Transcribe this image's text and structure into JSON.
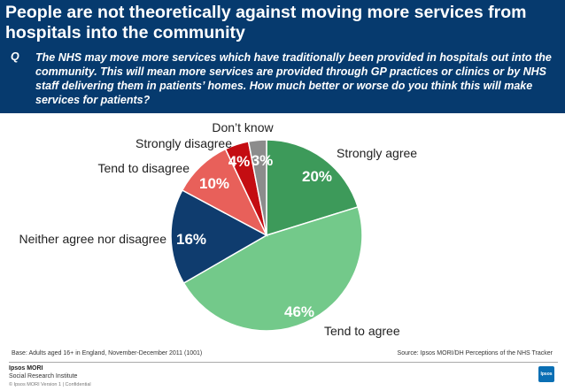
{
  "header": {
    "title": "People are not theoretically against moving more services from hospitals into the community",
    "q_letter": "Q",
    "question": "The NHS may move more services which have traditionally been provided in hospitals out into the community. This will mean more services are provided through GP practices or clinics or by NHS staff delivering them in patients’ homes. How much better or worse do you think this will make services for patients?"
  },
  "chart_data": {
    "type": "pie",
    "slices": [
      {
        "label": "Strongly agree",
        "value": 20,
        "display": "20%",
        "color": "#3d9a5a"
      },
      {
        "label": "Tend to agree",
        "value": 46,
        "display": "46%",
        "color": "#73c98a"
      },
      {
        "label": "Neither agree nor disagree",
        "value": 16,
        "display": "16%",
        "color": "#0f3c6e"
      },
      {
        "label": "Tend to disagree",
        "value": 10,
        "display": "10%",
        "color": "#e8605a"
      },
      {
        "label": "Strongly disagree",
        "value": 4,
        "display": "4%",
        "color": "#c40d12"
      },
      {
        "label": "Don’t know",
        "value": 3,
        "display": "3%",
        "color": "#8c8c8c"
      }
    ]
  },
  "footer": {
    "base": "Base: Adults aged 16+ in England, November-December 2011 (1001)",
    "source": "Source: Ipsos MORI/DH Perceptions of the NHS Tracker",
    "brand": "Ipsos MORI",
    "brand_sub": "Social Research Institute",
    "legal": "© Ipsos MORI     Version 1 | Confidential",
    "logo": "Ipsos"
  }
}
